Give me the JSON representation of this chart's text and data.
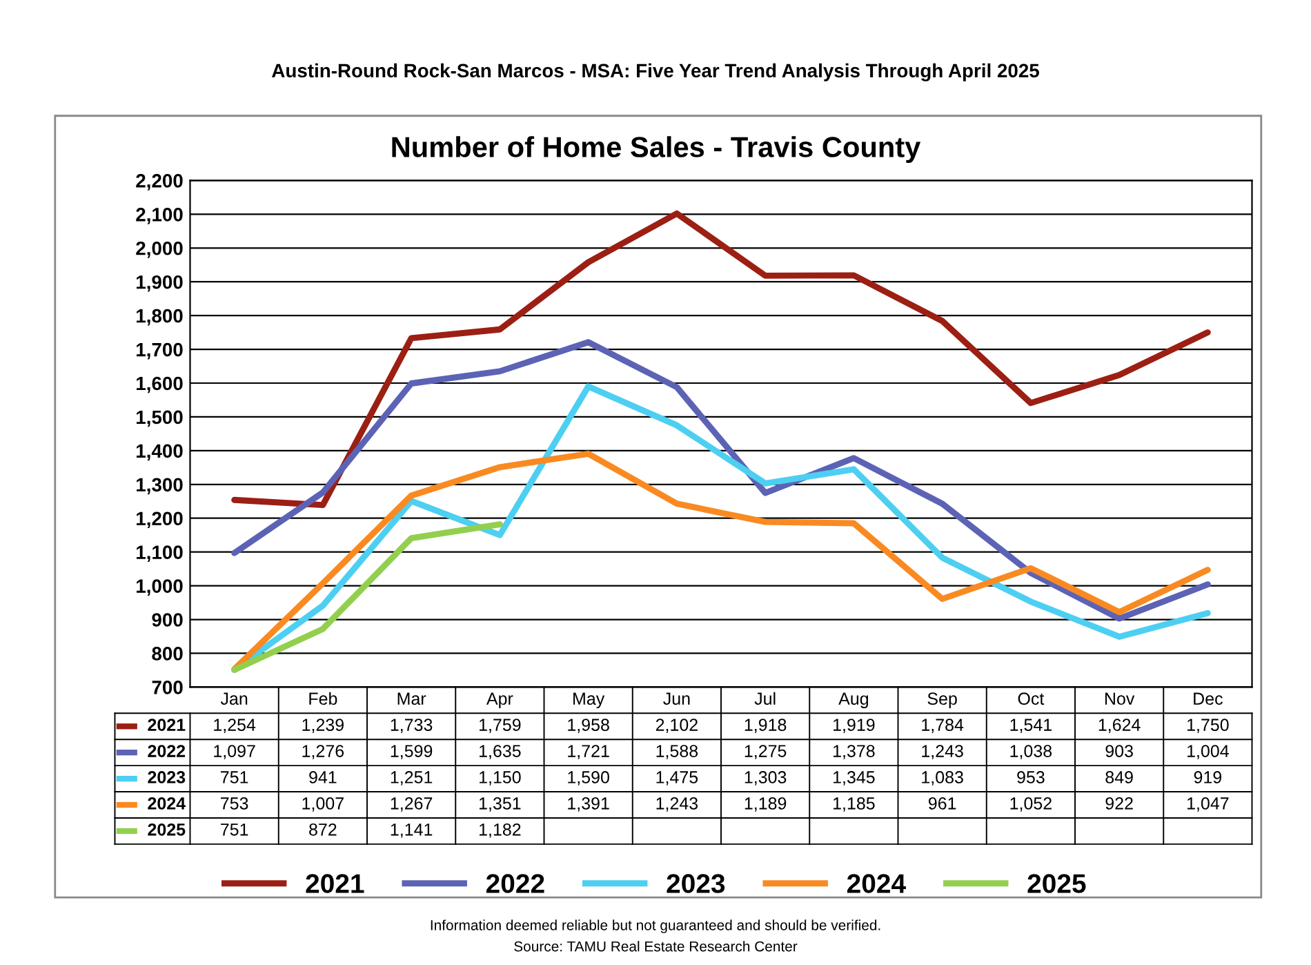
{
  "chart_data": {
    "type": "line",
    "title": "Number of Home Sales - Travis County",
    "subtitle": "Austin-Round Rock-San Marcos - MSA: Five Year Trend Analysis Through April 2025",
    "annotations": [
      "Information deemed reliable but not guaranteed and should be verified.",
      "Source: TAMU Real Estate Research Center"
    ],
    "categories": [
      "Jan",
      "Feb",
      "Mar",
      "Apr",
      "May",
      "Jun",
      "Jul",
      "Aug",
      "Sep",
      "Oct",
      "Nov",
      "Dec"
    ],
    "series": [
      {
        "name": "2021",
        "color": "#9c1f14",
        "values": [
          1254,
          1239,
          1733,
          1759,
          1958,
          2102,
          1918,
          1919,
          1784,
          1541,
          1624,
          1750
        ],
        "value_labels": [
          "1,254",
          "1,239",
          "1,733",
          "1,759",
          "1,958",
          "2,102",
          "1,918",
          "1,919",
          "1,784",
          "1,541",
          "1,624",
          "1,750"
        ]
      },
      {
        "name": "2022",
        "color": "#5c63b5",
        "values": [
          1097,
          1276,
          1599,
          1635,
          1721,
          1588,
          1275,
          1378,
          1243,
          1038,
          903,
          1004
        ],
        "value_labels": [
          "1,097",
          "1,276",
          "1,599",
          "1,635",
          "1,721",
          "1,588",
          "1,275",
          "1,378",
          "1,243",
          "1,038",
          "903",
          "1,004"
        ]
      },
      {
        "name": "2023",
        "color": "#4dcff2",
        "values": [
          751,
          941,
          1251,
          1150,
          1590,
          1475,
          1303,
          1345,
          1083,
          953,
          849,
          919
        ],
        "value_labels": [
          "751",
          "941",
          "1,251",
          "1,150",
          "1,590",
          "1,475",
          "1,303",
          "1,345",
          "1,083",
          "953",
          "849",
          "919"
        ]
      },
      {
        "name": "2024",
        "color": "#f98a22",
        "values": [
          753,
          1007,
          1267,
          1351,
          1391,
          1243,
          1189,
          1185,
          961,
          1052,
          922,
          1047
        ],
        "value_labels": [
          "753",
          "1,007",
          "1,267",
          "1,351",
          "1,391",
          "1,243",
          "1,189",
          "1,185",
          "961",
          "1,052",
          "922",
          "1,047"
        ]
      },
      {
        "name": "2025",
        "color": "#93cf4f",
        "values": [
          751,
          872,
          1141,
          1182,
          null,
          null,
          null,
          null,
          null,
          null,
          null,
          null
        ],
        "value_labels": [
          "751",
          "872",
          "1,141",
          "1,182",
          null,
          null,
          null,
          null,
          null,
          null,
          null,
          null
        ]
      }
    ],
    "ylim": [
      700,
      2200
    ],
    "yticks": [
      700,
      800,
      900,
      {
        "value": 1000,
        "label": "1,000"
      },
      {
        "value": 1100,
        "label": "1,100"
      },
      {
        "value": 1200,
        "label": "1,200"
      },
      {
        "value": 1300,
        "label": "1,300"
      },
      {
        "value": 1400,
        "label": "1,400"
      },
      {
        "value": 1500,
        "label": "1,500"
      },
      {
        "value": 1600,
        "label": "1,600"
      },
      {
        "value": 1700,
        "label": "1,700"
      },
      {
        "value": 1800,
        "label": "1,800"
      },
      {
        "value": 1900,
        "label": "1,900"
      },
      {
        "value": 2000,
        "label": "2,000"
      },
      {
        "value": 2100,
        "label": "2,100"
      },
      {
        "value": 2200,
        "label": "2,200"
      }
    ],
    "grid": "y",
    "legend": "bottom",
    "marker": "none",
    "line_style": "solid"
  }
}
